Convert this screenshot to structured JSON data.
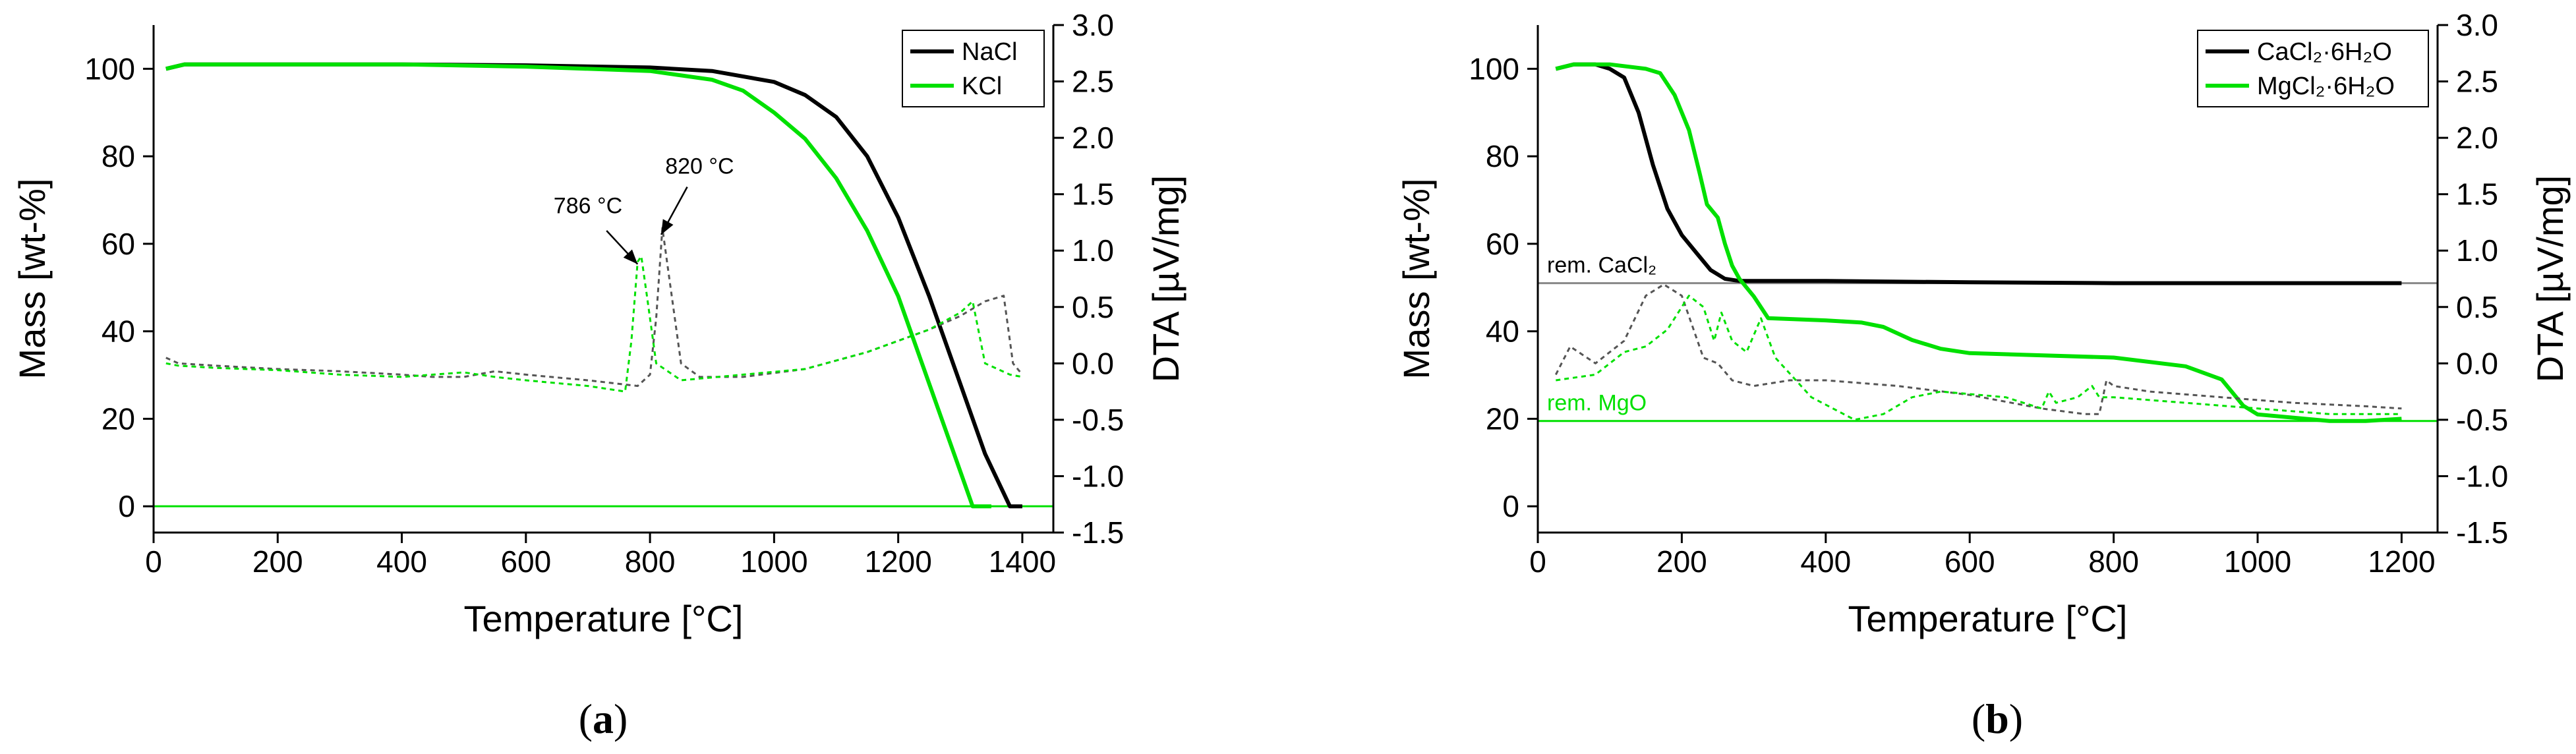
{
  "chart_data": [
    {
      "type": "line",
      "panel_label_text": "a",
      "xlabel": "Temperature [°C]",
      "ylabel": "Mass [wt-%]",
      "y2label": "DTA [µV/mg]",
      "xlim": [
        0,
        1450
      ],
      "ylim": [
        -6,
        110
      ],
      "y2lim": [
        -1.5,
        3.0
      ],
      "xticks": [
        0,
        200,
        400,
        600,
        800,
        1000,
        1200,
        1400
      ],
      "yticks": [
        0,
        20,
        40,
        60,
        80,
        100
      ],
      "y2ticks": [
        -1.5,
        -1.0,
        -0.5,
        0.0,
        0.5,
        1.0,
        1.5,
        2.0,
        2.5,
        3.0
      ],
      "y2tick_labels": [
        "-1.5",
        "-1.0",
        "-0.5",
        "0.0",
        "0.5",
        "1.0",
        "1.5",
        "2.0",
        "2.5",
        "3.0"
      ],
      "legend": [
        {
          "name": "NaCl",
          "color": "#000000"
        },
        {
          "name": "KCl",
          "color": "#00e000"
        }
      ],
      "series": [
        {
          "name": "NaCl",
          "axis": "mass",
          "color": "#000000",
          "style": "solid",
          "x": [
            20,
            50,
            100,
            200,
            400,
            600,
            800,
            900,
            1000,
            1050,
            1100,
            1150,
            1200,
            1250,
            1300,
            1340,
            1380,
            1400
          ],
          "y": [
            100,
            101,
            101,
            101,
            101,
            100.8,
            100.3,
            99.5,
            97,
            94,
            89,
            80,
            66,
            48,
            28,
            12,
            0,
            0
          ]
        },
        {
          "name": "KCl",
          "axis": "mass",
          "color": "#00e000",
          "style": "solid",
          "x": [
            20,
            50,
            100,
            200,
            400,
            600,
            800,
            900,
            950,
            1000,
            1050,
            1100,
            1150,
            1200,
            1250,
            1290,
            1320,
            1350
          ],
          "y": [
            100,
            101,
            101,
            101,
            101,
            100.5,
            99.5,
            97.5,
            95,
            90,
            84,
            75,
            63,
            48,
            28,
            12,
            0,
            0
          ]
        },
        {
          "name": "NaCl DTA",
          "axis": "dta",
          "color": "#555555",
          "style": "dashed",
          "x": [
            20,
            40,
            100,
            200,
            300,
            400,
            450,
            500,
            550,
            600,
            700,
            780,
            800,
            810,
            820,
            830,
            850,
            880,
            950,
            1050,
            1150,
            1250,
            1300,
            1340,
            1370,
            1385,
            1400
          ],
          "y": [
            0.05,
            0.0,
            -0.02,
            -0.05,
            -0.07,
            -0.1,
            -0.12,
            -0.12,
            -0.07,
            -0.1,
            -0.15,
            -0.2,
            -0.1,
            0.4,
            1.2,
            0.8,
            0.0,
            -0.12,
            -0.12,
            -0.05,
            0.1,
            0.3,
            0.42,
            0.55,
            0.6,
            0.0,
            -0.1
          ]
        },
        {
          "name": "KCl DTA",
          "axis": "dta",
          "color": "#00e000",
          "style": "dashed",
          "x": [
            20,
            40,
            100,
            200,
            300,
            400,
            450,
            500,
            550,
            600,
            700,
            760,
            770,
            780,
            786,
            795,
            810,
            850,
            950,
            1050,
            1150,
            1250,
            1300,
            1320,
            1340,
            1380,
            1400
          ],
          "y": [
            0.0,
            -0.02,
            -0.04,
            -0.06,
            -0.1,
            -0.12,
            -0.1,
            -0.08,
            -0.12,
            -0.15,
            -0.2,
            -0.25,
            0.2,
            0.9,
            0.95,
            0.6,
            0.0,
            -0.15,
            -0.1,
            -0.05,
            0.1,
            0.3,
            0.45,
            0.55,
            0.0,
            -0.1,
            -0.12
          ]
        }
      ],
      "hlines": [
        {
          "axis": "mass",
          "value": 0,
          "color": "#00e000"
        }
      ],
      "annotations": [
        {
          "text": "786 °C",
          "x": 700,
          "y": 67
        },
        {
          "text": "820 °C",
          "x": 880,
          "y": 76
        }
      ]
    },
    {
      "type": "line",
      "panel_label_text": "b",
      "xlabel": "Temperature [°C]",
      "ylabel": "Mass [wt-%]",
      "y2label": "DTA [µV/mg]",
      "xlim": [
        0,
        1250
      ],
      "ylim": [
        -6,
        110
      ],
      "y2lim": [
        -1.5,
        3.0
      ],
      "xticks": [
        0,
        200,
        400,
        600,
        800,
        1000,
        1200
      ],
      "yticks": [
        0,
        20,
        40,
        60,
        80,
        100
      ],
      "y2ticks": [
        -1.5,
        -1.0,
        -0.5,
        0.0,
        0.5,
        1.0,
        1.5,
        2.0,
        2.5,
        3.0
      ],
      "y2tick_labels": [
        "-1.5",
        "-1.0",
        "-0.5",
        "0.0",
        "0.5",
        "1.0",
        "1.5",
        "2.0",
        "2.5",
        "3.0"
      ],
      "legend": [
        {
          "name": "CaCl₂·6H₂O",
          "color": "#000000"
        },
        {
          "name": "MgCl₂·6H₂O",
          "color": "#00e000"
        }
      ],
      "series": [
        {
          "name": "CaCl₂·6H₂O",
          "axis": "mass",
          "color": "#000000",
          "style": "solid",
          "x": [
            25,
            50,
            80,
            100,
            120,
            140,
            160,
            180,
            200,
            220,
            240,
            260,
            280,
            300,
            400,
            600,
            800,
            1000,
            1200
          ],
          "y": [
            100,
            101,
            101,
            100,
            98,
            90,
            78,
            68,
            62,
            58,
            54,
            52,
            51.5,
            51.5,
            51.5,
            51.2,
            51,
            51,
            51
          ]
        },
        {
          "name": "MgCl₂·6H₂O",
          "axis": "mass",
          "color": "#00e000",
          "style": "solid",
          "x": [
            25,
            50,
            100,
            150,
            170,
            190,
            210,
            225,
            235,
            250,
            260,
            270,
            280,
            300,
            320,
            400,
            450,
            480,
            520,
            560,
            600,
            800,
            900,
            950,
            980,
            1000,
            1100,
            1150,
            1200
          ],
          "y": [
            100,
            101,
            101,
            100,
            99,
            94,
            86,
            76,
            69,
            66,
            60,
            55,
            52,
            48,
            43,
            42.5,
            42,
            41,
            38,
            36,
            35,
            34,
            32,
            29,
            23,
            21,
            19.5,
            19.5,
            20
          ]
        },
        {
          "name": "CaCl₂·6H₂O DTA",
          "axis": "dta",
          "color": "#555555",
          "style": "dashed",
          "x": [
            25,
            45,
            80,
            120,
            150,
            175,
            200,
            230,
            250,
            270,
            300,
            350,
            400,
            500,
            600,
            700,
            760,
            780,
            790,
            800,
            850,
            950,
            1050,
            1150,
            1200
          ],
          "y": [
            -0.1,
            0.15,
            0.0,
            0.2,
            0.6,
            0.7,
            0.6,
            0.05,
            0.0,
            -0.15,
            -0.2,
            -0.15,
            -0.15,
            -0.2,
            -0.28,
            -0.4,
            -0.45,
            -0.45,
            -0.15,
            -0.2,
            -0.25,
            -0.3,
            -0.35,
            -0.38,
            -0.4
          ]
        },
        {
          "name": "MgCl₂·6H₂O DTA",
          "axis": "dta",
          "color": "#00e000",
          "style": "dashed",
          "x": [
            25,
            80,
            120,
            150,
            180,
            210,
            230,
            245,
            255,
            270,
            290,
            310,
            330,
            380,
            440,
            480,
            520,
            560,
            650,
            700,
            710,
            720,
            750,
            770,
            780,
            800,
            900,
            1000,
            1100,
            1200
          ],
          "y": [
            -0.15,
            -0.1,
            0.1,
            0.15,
            0.3,
            0.6,
            0.5,
            0.2,
            0.45,
            0.2,
            0.1,
            0.4,
            0.05,
            -0.3,
            -0.5,
            -0.45,
            -0.3,
            -0.25,
            -0.3,
            -0.4,
            -0.25,
            -0.35,
            -0.3,
            -0.2,
            -0.3,
            -0.3,
            -0.35,
            -0.4,
            -0.45,
            -0.45
          ]
        }
      ],
      "hlines": [
        {
          "axis": "mass",
          "value": 51,
          "color": "#888888",
          "label": "rem. CaCl₂",
          "label_color": "#000000"
        },
        {
          "axis": "mass",
          "value": 19.5,
          "color": "#00e000",
          "label": "rem. MgO",
          "label_color": "#00e000"
        }
      ],
      "annotations": []
    }
  ]
}
